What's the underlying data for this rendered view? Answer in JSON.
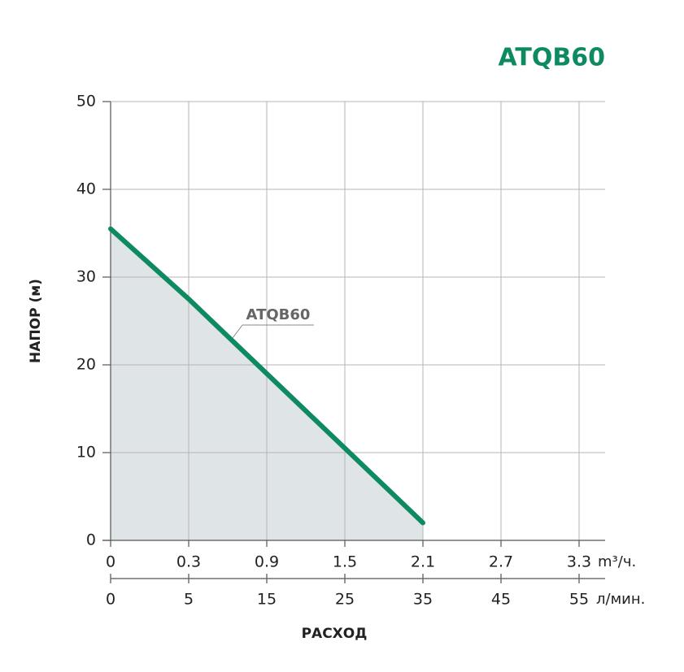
{
  "chart_data": {
    "type": "area-line",
    "title": "ATQB60",
    "y_label": "НАПОР (м)",
    "x_label": "РАСХОД",
    "categories": [
      "0",
      "0.3",
      "0.9",
      "1.5",
      "2.1",
      "2.7",
      "3.3"
    ],
    "x_unit": "m³/ч.",
    "x2_categories": [
      "0",
      "5",
      "15",
      "25",
      "35",
      "45",
      "55"
    ],
    "x2_unit": "л/мин.",
    "series": [
      {
        "name": "ATQB60",
        "color": "#0e8a62",
        "fill": "#dfe4e6",
        "values": [
          35.5,
          27.5,
          19,
          10.5,
          2,
          null,
          null
        ]
      }
    ],
    "ylim": [
      0,
      50
    ],
    "yticks": [
      0,
      10,
      20,
      30,
      40,
      50
    ],
    "grid": true
  }
}
